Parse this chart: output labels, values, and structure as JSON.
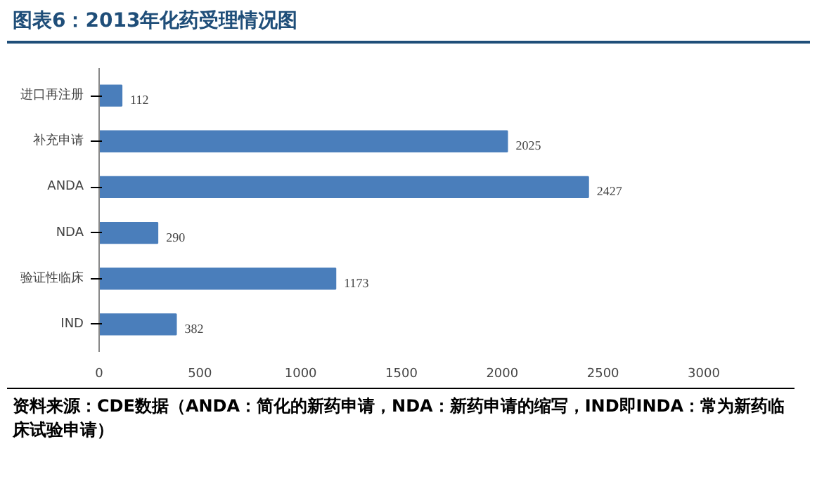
{
  "chart_data": {
    "type": "bar",
    "orientation": "horizontal",
    "title": "图表6：2013年化药受理情况图",
    "categories": [
      "进口再注册",
      "补充申请",
      "ANDA",
      "NDA",
      "验证性临床",
      "IND"
    ],
    "values": [
      112,
      2025,
      2427,
      290,
      1173,
      382
    ],
    "color": "#4a7ebb",
    "data_labels": true,
    "xlim": [
      0,
      3000
    ],
    "xticks": [
      0,
      500,
      1000,
      1500,
      2000,
      2500,
      3000
    ],
    "grid": false,
    "annotations": [
      "资料来源：CDE数据（ANDA：简化的新药申请，NDA：新药申请的缩写，IND即INDA：常为新药临床试验申请）"
    ]
  }
}
